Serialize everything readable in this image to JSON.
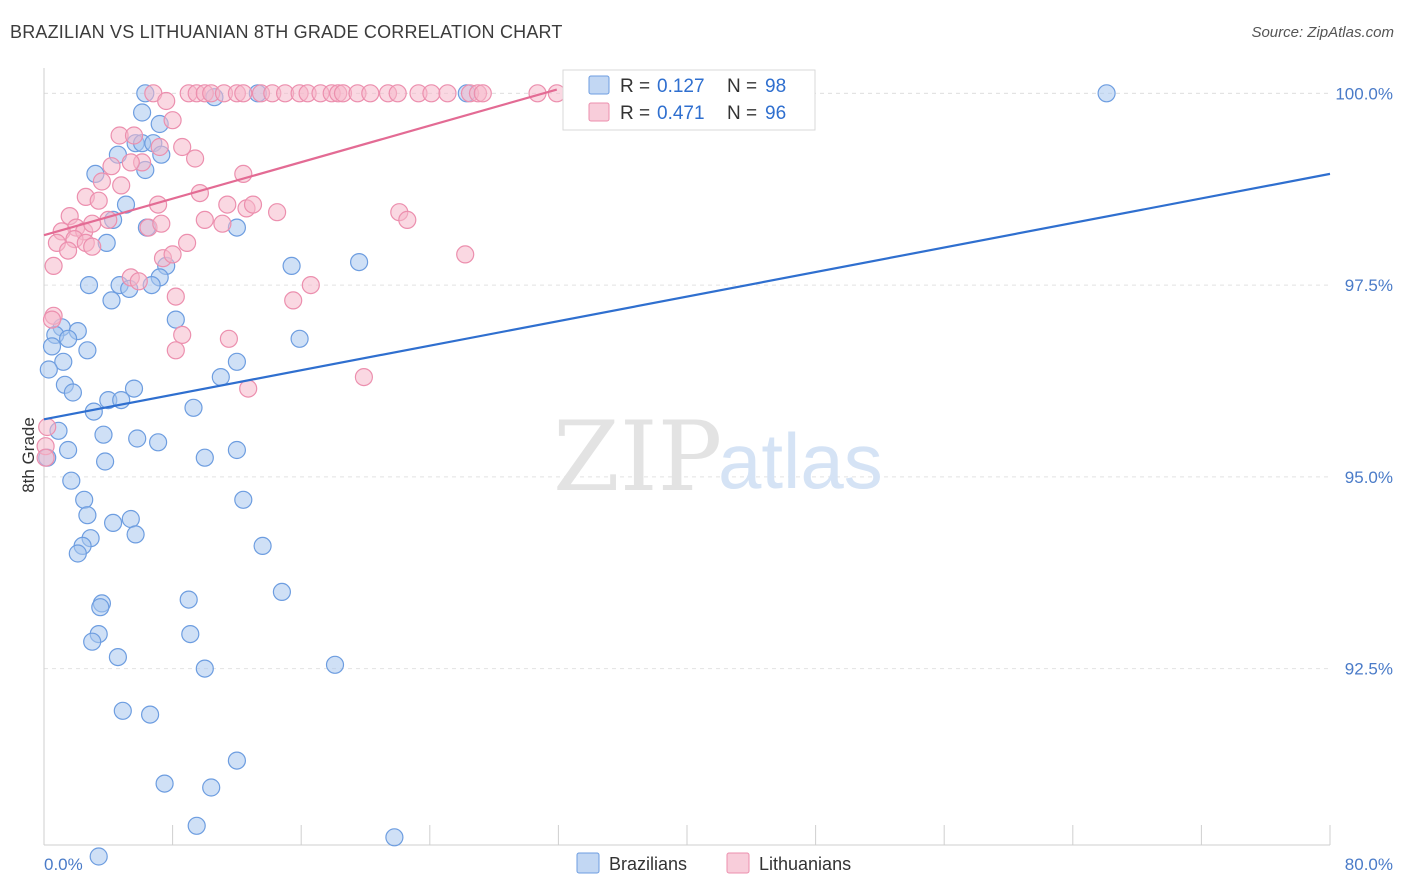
{
  "title": "BRAZILIAN VS LITHUANIAN 8TH GRADE CORRELATION CHART",
  "source": "Source: ZipAtlas.com",
  "watermark": {
    "zip": "ZIP",
    "atlas": "atlas"
  },
  "legend": {
    "items": [
      {
        "r_label": "R =",
        "r_value": "0.127",
        "n_label": "N =",
        "n_value": "98",
        "color": "#a8c6ee"
      },
      {
        "r_label": "R =",
        "r_value": "0.471",
        "n_label": "N =",
        "n_value": "96",
        "color": "#f5b8cb"
      }
    ]
  },
  "bottom_legend": [
    "Brazilians",
    "Lithuanians"
  ],
  "chart_data": {
    "type": "scatter",
    "title": "BRAZILIAN VS LITHUANIAN 8TH GRADE CORRELATION CHART",
    "xlabel": "",
    "ylabel": "8th Grade",
    "xlim": [
      0,
      80
    ],
    "ylim": [
      90.2,
      100.2
    ],
    "x_tick_labels": [
      "0.0%",
      "80.0%"
    ],
    "y_ticks": [
      92.5,
      95.0,
      97.5,
      100.0
    ],
    "y_tick_labels": [
      "92.5%",
      "95.0%",
      "97.5%",
      "100.0%"
    ],
    "grid": true,
    "legend_position": "top-center",
    "series": [
      {
        "name": "Brazilians",
        "color": "#6d9de0",
        "fill": "#a8c6ee",
        "line_color": "#2f6fcf",
        "trend": {
          "x": [
            0,
            80
          ],
          "y": [
            95.75,
            98.95
          ]
        },
        "points": [
          [
            6.3,
            100
          ],
          [
            10.6,
            99.95
          ],
          [
            13.3,
            100
          ],
          [
            26.3,
            100
          ],
          [
            66.1,
            100
          ],
          [
            6.1,
            99.75
          ],
          [
            7.2,
            99.6
          ],
          [
            5.7,
            99.35
          ],
          [
            6.1,
            99.35
          ],
          [
            6.8,
            99.35
          ],
          [
            4.6,
            99.2
          ],
          [
            7.3,
            99.2
          ],
          [
            6.3,
            99.0
          ],
          [
            3.2,
            98.95
          ],
          [
            5.1,
            98.55
          ],
          [
            4.3,
            98.35
          ],
          [
            6.4,
            98.25
          ],
          [
            12.0,
            98.25
          ],
          [
            3.9,
            98.05
          ],
          [
            15.4,
            97.75
          ],
          [
            19.6,
            97.8
          ],
          [
            7.6,
            97.75
          ],
          [
            7.2,
            97.6
          ],
          [
            4.7,
            97.5
          ],
          [
            5.3,
            97.45
          ],
          [
            2.8,
            97.5
          ],
          [
            6.7,
            97.5
          ],
          [
            4.2,
            97.3
          ],
          [
            8.2,
            97.05
          ],
          [
            1.1,
            96.95
          ],
          [
            2.1,
            96.9
          ],
          [
            0.7,
            96.85
          ],
          [
            1.5,
            96.8
          ],
          [
            0.5,
            96.7
          ],
          [
            2.7,
            96.65
          ],
          [
            15.9,
            96.8
          ],
          [
            12.0,
            96.5
          ],
          [
            1.2,
            96.5
          ],
          [
            0.3,
            96.4
          ],
          [
            11.0,
            96.3
          ],
          [
            1.3,
            96.2
          ],
          [
            1.8,
            96.1
          ],
          [
            5.6,
            96.15
          ],
          [
            4.0,
            96.0
          ],
          [
            4.8,
            96.0
          ],
          [
            3.1,
            95.85
          ],
          [
            9.3,
            95.9
          ],
          [
            0.9,
            95.6
          ],
          [
            3.7,
            95.55
          ],
          [
            5.8,
            95.5
          ],
          [
            7.1,
            95.45
          ],
          [
            12.0,
            95.35
          ],
          [
            1.5,
            95.35
          ],
          [
            0.2,
            95.25
          ],
          [
            3.8,
            95.2
          ],
          [
            10.0,
            95.25
          ],
          [
            1.7,
            94.95
          ],
          [
            2.5,
            94.7
          ],
          [
            12.4,
            94.7
          ],
          [
            2.7,
            94.5
          ],
          [
            5.4,
            94.45
          ],
          [
            4.3,
            94.4
          ],
          [
            5.7,
            94.25
          ],
          [
            2.9,
            94.2
          ],
          [
            2.4,
            94.1
          ],
          [
            13.6,
            94.1
          ],
          [
            2.1,
            94.0
          ],
          [
            14.8,
            93.5
          ],
          [
            9.0,
            93.4
          ],
          [
            3.6,
            93.35
          ],
          [
            3.5,
            93.3
          ],
          [
            3.4,
            92.95
          ],
          [
            9.1,
            92.95
          ],
          [
            3.0,
            92.85
          ],
          [
            4.6,
            92.65
          ],
          [
            18.1,
            92.55
          ],
          [
            10.0,
            92.5
          ],
          [
            4.9,
            91.95
          ],
          [
            6.6,
            91.9
          ],
          [
            12.0,
            91.3
          ],
          [
            7.5,
            91.0
          ],
          [
            10.4,
            90.95
          ],
          [
            9.5,
            90.45
          ],
          [
            21.8,
            90.3
          ],
          [
            3.4,
            90.05
          ]
        ]
      },
      {
        "name": "Lithuanians",
        "color": "#ec8fae",
        "fill": "#f5b8cb",
        "line_color": "#e36b94",
        "trend": {
          "x": [
            0,
            31.9
          ],
          "y": [
            98.15,
            100.05
          ]
        },
        "points": [
          [
            6.8,
            100
          ],
          [
            9.0,
            100
          ],
          [
            9.5,
            100
          ],
          [
            10.0,
            100
          ],
          [
            10.4,
            100
          ],
          [
            11.2,
            100
          ],
          [
            12.0,
            100
          ],
          [
            12.4,
            100
          ],
          [
            13.5,
            100
          ],
          [
            14.2,
            100
          ],
          [
            15.0,
            100
          ],
          [
            15.9,
            100
          ],
          [
            16.4,
            100
          ],
          [
            17.2,
            100
          ],
          [
            17.9,
            100
          ],
          [
            18.3,
            100
          ],
          [
            18.6,
            100
          ],
          [
            19.5,
            100
          ],
          [
            20.3,
            100
          ],
          [
            21.4,
            100
          ],
          [
            22.0,
            100
          ],
          [
            23.3,
            100
          ],
          [
            24.1,
            100
          ],
          [
            25.1,
            100
          ],
          [
            26.5,
            100
          ],
          [
            27.0,
            100
          ],
          [
            27.3,
            100
          ],
          [
            30.7,
            100
          ],
          [
            31.9,
            100
          ],
          [
            7.6,
            99.9
          ],
          [
            8.0,
            99.65
          ],
          [
            4.7,
            99.45
          ],
          [
            7.2,
            99.3
          ],
          [
            5.6,
            99.45
          ],
          [
            8.6,
            99.3
          ],
          [
            9.4,
            99.15
          ],
          [
            6.1,
            99.1
          ],
          [
            4.2,
            99.05
          ],
          [
            5.4,
            99.1
          ],
          [
            12.4,
            98.95
          ],
          [
            3.6,
            98.85
          ],
          [
            4.8,
            98.8
          ],
          [
            9.7,
            98.7
          ],
          [
            2.6,
            98.65
          ],
          [
            3.4,
            98.6
          ],
          [
            7.1,
            98.55
          ],
          [
            11.4,
            98.55
          ],
          [
            12.6,
            98.5
          ],
          [
            13.0,
            98.55
          ],
          [
            14.5,
            98.45
          ],
          [
            22.1,
            98.45
          ],
          [
            22.6,
            98.35
          ],
          [
            10.0,
            98.35
          ],
          [
            11.1,
            98.3
          ],
          [
            4.0,
            98.35
          ],
          [
            1.6,
            98.4
          ],
          [
            2.0,
            98.25
          ],
          [
            2.5,
            98.2
          ],
          [
            3.0,
            98.3
          ],
          [
            6.5,
            98.25
          ],
          [
            7.3,
            98.3
          ],
          [
            1.1,
            98.2
          ],
          [
            1.9,
            98.1
          ],
          [
            0.8,
            98.05
          ],
          [
            2.6,
            98.05
          ],
          [
            3.0,
            98.0
          ],
          [
            1.5,
            97.95
          ],
          [
            8.9,
            98.05
          ],
          [
            7.4,
            97.85
          ],
          [
            8.0,
            97.9
          ],
          [
            26.2,
            97.9
          ],
          [
            0.6,
            97.75
          ],
          [
            5.4,
            97.6
          ],
          [
            5.9,
            97.55
          ],
          [
            16.6,
            97.5
          ],
          [
            8.2,
            97.35
          ],
          [
            15.5,
            97.3
          ],
          [
            0.6,
            97.1
          ],
          [
            0.5,
            97.05
          ],
          [
            8.6,
            96.85
          ],
          [
            11.5,
            96.8
          ],
          [
            8.2,
            96.65
          ],
          [
            19.9,
            96.3
          ],
          [
            12.7,
            96.15
          ],
          [
            0.2,
            95.65
          ],
          [
            0.1,
            95.4
          ],
          [
            0.1,
            95.25
          ]
        ]
      }
    ]
  }
}
